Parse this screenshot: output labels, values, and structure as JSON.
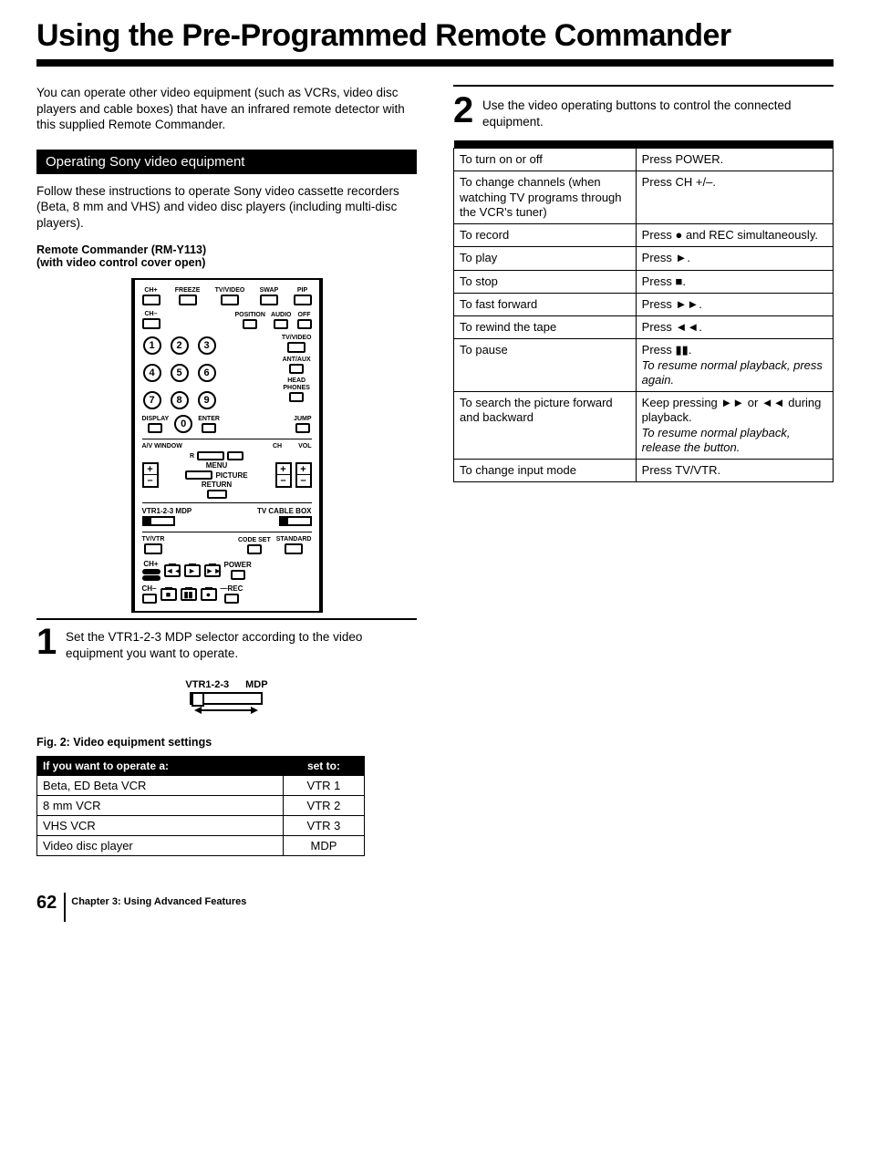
{
  "title": "Using the Pre-Programmed Remote Commander",
  "intro": "You can operate other video equipment (such as VCRs, video disc players and cable boxes) that have an infrared remote detector with this supplied Remote Commander.",
  "section_bar": "Operating Sony video equipment",
  "section_body": "Follow these instructions to operate Sony video cassette recorders (Beta, 8 mm and VHS) and video disc players (including multi-disc players).",
  "remote_name1": "Remote Commander (RM-Y113)",
  "remote_name2": "(with video control cover open)",
  "remote": {
    "row1": [
      "CH+",
      "FREEZE",
      "TV/VIDEO",
      "SWAP",
      "PIP"
    ],
    "row2_left": "CH–",
    "row2_right": [
      "POSITION",
      "AUDIO",
      "OFF"
    ],
    "side1": "TV/VIDEO",
    "side2": "ANT/AUX",
    "side3a": "HEAD",
    "side3b": "PHONES",
    "bottom1_left": "DISPLAY",
    "bottom1_mid": "ENTER",
    "bottom1_right": "JUMP",
    "avwindow": "A/V WINDOW",
    "ch": "CH",
    "vol": "VOL",
    "menu": "MENU",
    "return": "RETURN",
    "picture": "PICTURE",
    "vtr_label": "VTR1-2-3 MDP",
    "tv_cable": "TV CABLE BOX",
    "tv_vtr": "TV/VTR",
    "codeset": "CODE SET",
    "standard": "STANDARD",
    "chplus": "CH+",
    "chminus": "CH–",
    "power": "POWER",
    "rec": "REC"
  },
  "step1": "Set the VTR1-2-3 MDP selector according to the video equipment you want to operate.",
  "selector_left": "VTR1-2-3",
  "selector_right": "MDP",
  "fig2_caption": "Fig. 2: Video equipment settings",
  "fig2": {
    "head_a": "If you want to operate a:",
    "head_b": "set to:",
    "rows": [
      [
        "Beta, ED Beta VCR",
        "VTR 1"
      ],
      [
        "8 mm VCR",
        "VTR 2"
      ],
      [
        "VHS VCR",
        "VTR 3"
      ],
      [
        "Video disc player",
        "MDP"
      ]
    ]
  },
  "step2": "Use the video operating buttons to control the connected equipment.",
  "ops_head_a": " ",
  "ops_head_b": " ",
  "ops": [
    {
      "a": "To turn on or off",
      "b": "Press POWER."
    },
    {
      "a": "To change channels (when watching TV programs through the VCR's tuner)",
      "b": "Press CH +/–."
    },
    {
      "a": "To record",
      "b": "Press ● and REC simultaneously."
    },
    {
      "a": "To play",
      "b": "Press ►."
    },
    {
      "a": "To stop",
      "b": "Press ■."
    },
    {
      "a": "To fast forward",
      "b": "Press ►►."
    },
    {
      "a": "To rewind the tape",
      "b": "Press ◄◄."
    },
    {
      "a": "To pause",
      "b": "Press ▮▮.",
      "i": "To resume normal playback, press again."
    },
    {
      "a": "To search the picture forward and backward",
      "b": "Keep pressing ►► or ◄◄ during playback.",
      "i": "To resume normal playback, release the button."
    },
    {
      "a": "To change input mode",
      "b": "Press TV/VTR."
    }
  ],
  "page_num": "62",
  "chapter": "Chapter 3: Using Advanced Features"
}
